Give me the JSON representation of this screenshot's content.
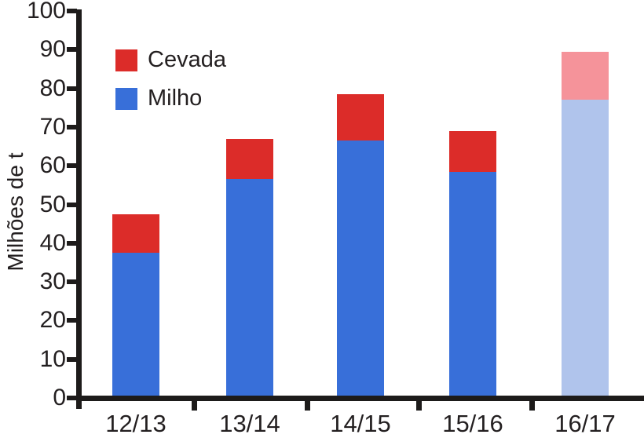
{
  "chart_data": {
    "type": "bar",
    "stacked": true,
    "title": "",
    "ylabel": "Milhões de t",
    "xlabel": "",
    "ylim": [
      0,
      100
    ],
    "ytick_step": 10,
    "yticks": [
      "0",
      "10",
      "20",
      "30",
      "40",
      "50",
      "60",
      "70",
      "80",
      "90",
      "100"
    ],
    "categories": [
      "12/13",
      "13/14",
      "14/15",
      "15/16",
      "16/17"
    ],
    "series": [
      {
        "name": "Milho",
        "color": "#386fd9",
        "values": [
          37.5,
          56.5,
          66.5,
          58.5,
          77.0
        ]
      },
      {
        "name": "Cevada",
        "color": "#dc2c29",
        "values": [
          10.0,
          10.5,
          12.0,
          10.5,
          12.5
        ]
      }
    ],
    "totals": [
      47.5,
      67.0,
      78.5,
      69.0,
      89.5
    ],
    "forecast_categories": [
      "16/17"
    ],
    "forecast_colors": {
      "Milho": "#b0c4ec",
      "Cevada": "#f5939a"
    },
    "legend": [
      {
        "label": "Cevada",
        "color": "#dc2c29"
      },
      {
        "label": "Milho",
        "color": "#386fd9"
      }
    ],
    "legend_position": "top-left",
    "grid": false,
    "axis_color": "#1d1b1a",
    "text_color": "#231f20",
    "background_color": "#ffffff"
  }
}
